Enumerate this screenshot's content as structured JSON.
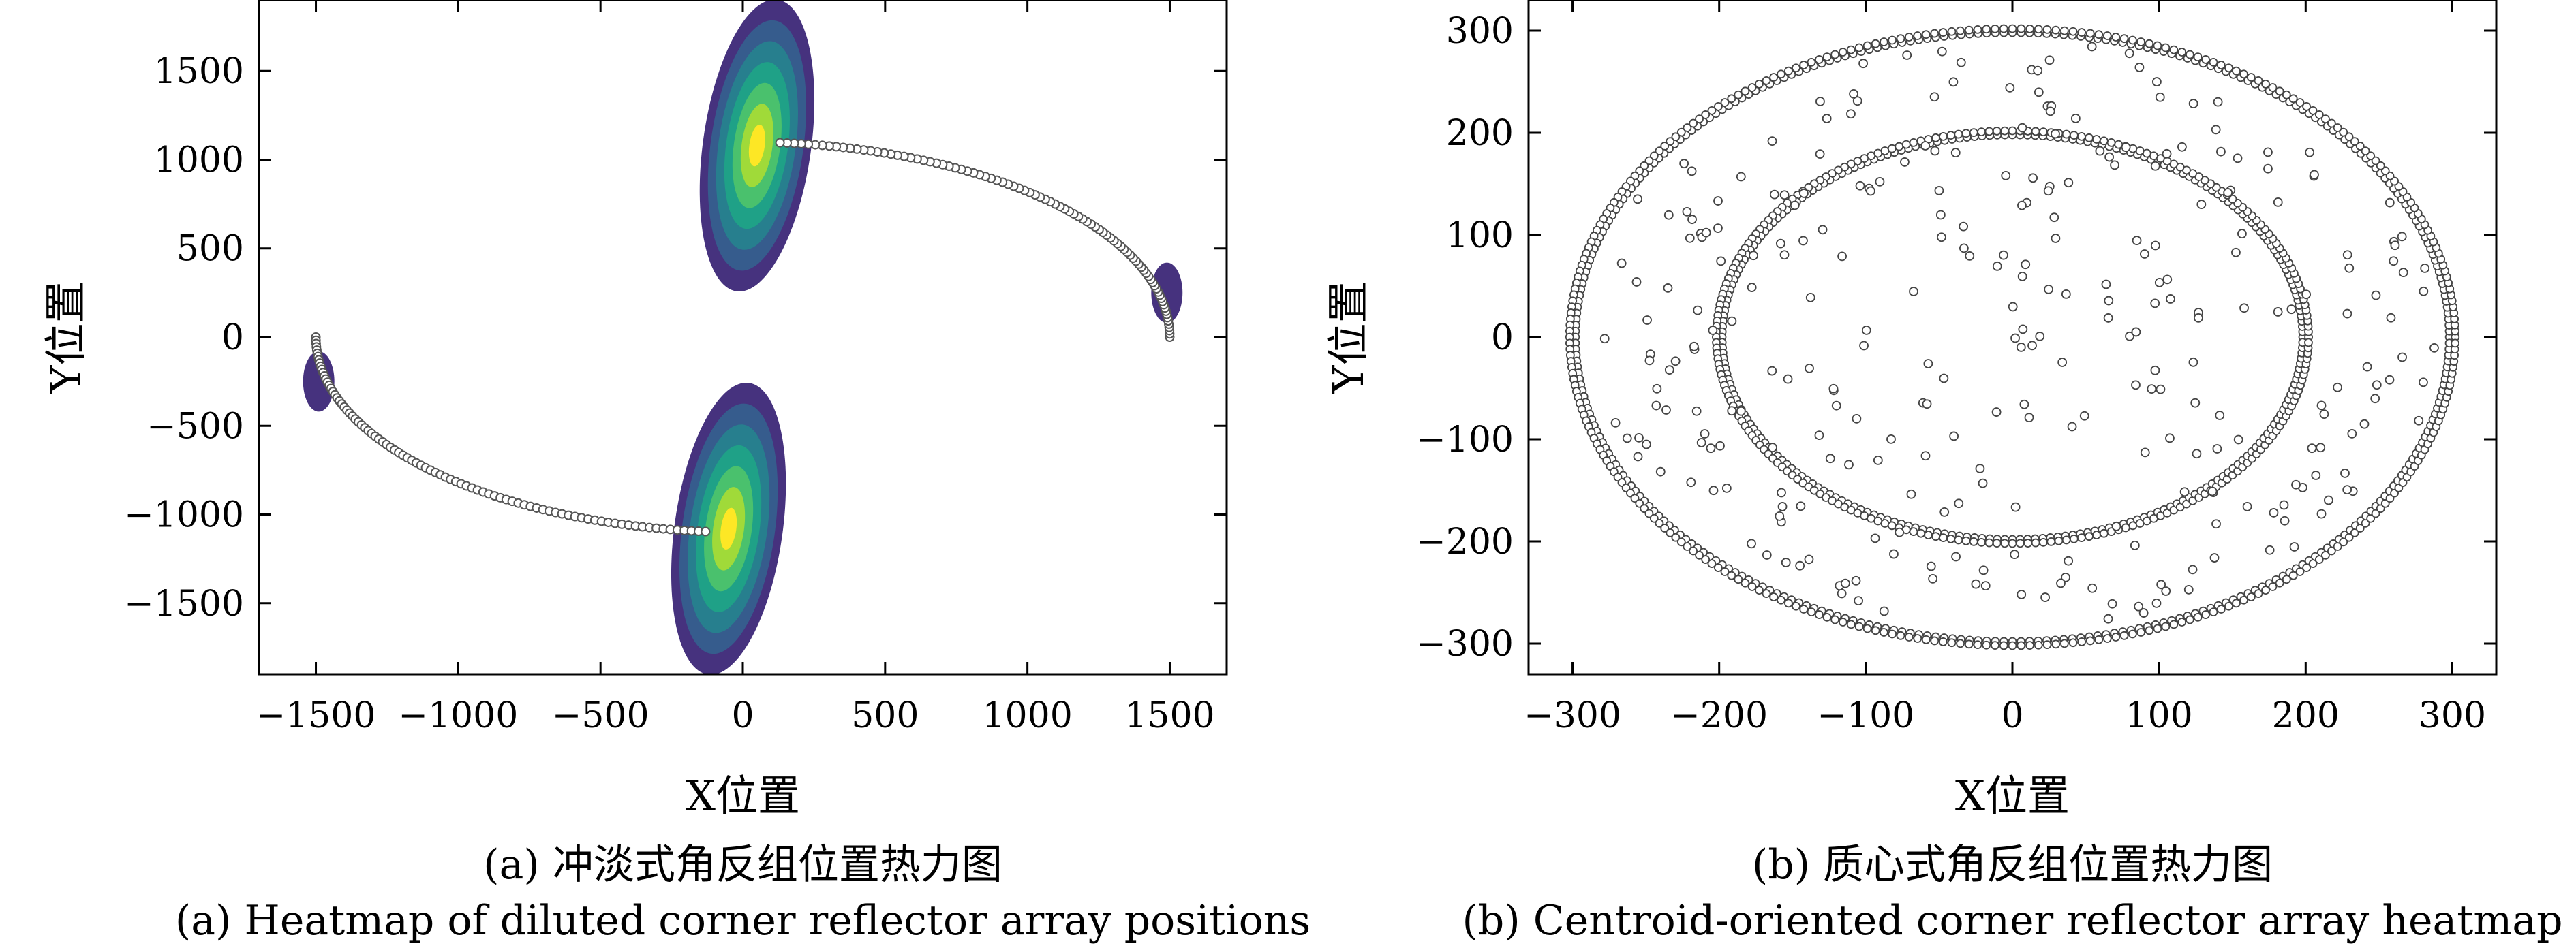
{
  "chart_data": [
    {
      "type": "heatmap",
      "panel": "a",
      "xlabel": "X位置",
      "ylabel": "Y位置",
      "xlim": [
        -1700,
        1700
      ],
      "ylim": [
        -1900,
        1900
      ],
      "x_ticks": [
        -1500,
        -1000,
        -500,
        0,
        500,
        1000,
        1500
      ],
      "x_tick_labels": [
        "−1500",
        "−1000",
        "−500",
        "0",
        "500",
        "1000",
        "1500"
      ],
      "y_ticks": [
        1500,
        1000,
        500,
        0,
        -500,
        -1000,
        -1500
      ],
      "y_tick_labels": [
        "1500",
        "1000",
        "500",
        "0",
        "−500",
        "−1000",
        "−1500"
      ],
      "caption_zh": "(a) 冲淡式角反组位置热力图",
      "caption_en": "(a) Heatmap of diluted corner reflector array positions",
      "heat_blobs": [
        {
          "cx": 50,
          "cy": 1080,
          "rx": 190,
          "ry": 830,
          "angle_deg": 8,
          "intensity": 1.0
        },
        {
          "cx": -50,
          "cy": -1080,
          "rx": 190,
          "ry": 830,
          "angle_deg": 8,
          "intensity": 1.0
        },
        {
          "cx": 1490,
          "cy": 250,
          "rx": 55,
          "ry": 170,
          "angle_deg": 0,
          "intensity": 0.15
        },
        {
          "cx": -1490,
          "cy": -250,
          "rx": 55,
          "ry": 170,
          "angle_deg": 0,
          "intensity": 0.15
        }
      ],
      "tracks": [
        {
          "center": [
            0,
            0
          ],
          "radius_x": 1500,
          "radius_y": 1100,
          "theta_start_deg": 0,
          "theta_end_deg": 85,
          "points": 90
        },
        {
          "center": [
            0,
            0
          ],
          "radius_x": 1500,
          "radius_y": 1100,
          "theta_start_deg": 180,
          "theta_end_deg": 265,
          "points": 90
        }
      ],
      "colormap": [
        "#46327e",
        "#365c8d",
        "#277f8e",
        "#1fa187",
        "#4ac16d",
        "#a0da39",
        "#fde725"
      ]
    },
    {
      "type": "scatter",
      "panel": "b",
      "xlabel": "X位置",
      "ylabel": "Y位置",
      "xlim": [
        -330,
        330
      ],
      "ylim": [
        -330,
        330
      ],
      "x_ticks": [
        -300,
        -200,
        -100,
        0,
        100,
        200,
        300
      ],
      "x_tick_labels": [
        "−300",
        "−200",
        "−100",
        "0",
        "100",
        "200",
        "300"
      ],
      "y_ticks": [
        300,
        200,
        100,
        0,
        -100,
        -200,
        -300
      ],
      "y_tick_labels": [
        "300",
        "200",
        "100",
        "0",
        "−100",
        "−200",
        "−300"
      ],
      "caption_zh": "(b) 质心式角反组位置热力图",
      "caption_en": "(b) Centroid-oriented corner reflector array heatmap",
      "rings": [
        {
          "radius_x": 300,
          "radius_y": 300,
          "points": 320
        },
        {
          "radius_x": 200,
          "radius_y": 200,
          "points": 240
        }
      ],
      "interior_scatter": {
        "count": 300,
        "max_radius_x": 290,
        "max_radius_y": 290
      }
    }
  ]
}
